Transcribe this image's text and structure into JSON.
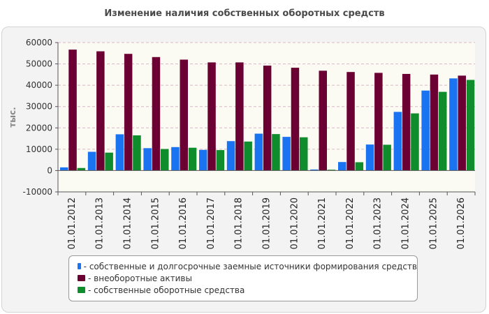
{
  "colors": {
    "series": [
      "#1a73f0",
      "#6b0032",
      "#0f8c2c"
    ],
    "axis": "#555555",
    "grid": "#d9b8c8",
    "plot_bg": "#fbfbf3"
  },
  "chart_data": {
    "type": "bar",
    "title": "Изменение наличия собственных оборотных средств",
    "ylabel": "тыс.",
    "xlabel": "",
    "ylim": [
      -10000,
      60000
    ],
    "y_ticks": [
      "-10000",
      "0",
      "10000",
      "20000",
      "30000",
      "40000",
      "50000",
      "60000"
    ],
    "grid": true,
    "legend_position": "bottom",
    "categories": [
      "01.01.2012",
      "01.01.2013",
      "01.01.2014",
      "01.01.2015",
      "01.01.2016",
      "01.01.2017",
      "01.01.2018",
      "01.01.2019",
      "01.01.2020",
      "01.01.2021",
      "01.01.2022",
      "01.01.2023",
      "01.01.2024",
      "01.01.2025",
      "01.01.2026"
    ],
    "series": [
      {
        "name": "- собственные и долгосрочные заемные источники формирования средств",
        "values": [
          1500,
          8800,
          17000,
          10500,
          11000,
          9700,
          13800,
          17300,
          15800,
          500,
          4000,
          12200,
          27500,
          37500,
          43200
        ]
      },
      {
        "name": "- внеоборотные активы",
        "values": [
          56700,
          55900,
          54700,
          53200,
          52000,
          50700,
          50700,
          49200,
          48200,
          46800,
          46200,
          45800,
          45300,
          45000,
          44500
        ]
      },
      {
        "name": "- собственные оборотные средства",
        "values": [
          1200,
          8400,
          16500,
          10100,
          10700,
          9600,
          13600,
          17100,
          15600,
          400,
          3900,
          12100,
          26800,
          36900,
          42500
        ]
      }
    ]
  }
}
